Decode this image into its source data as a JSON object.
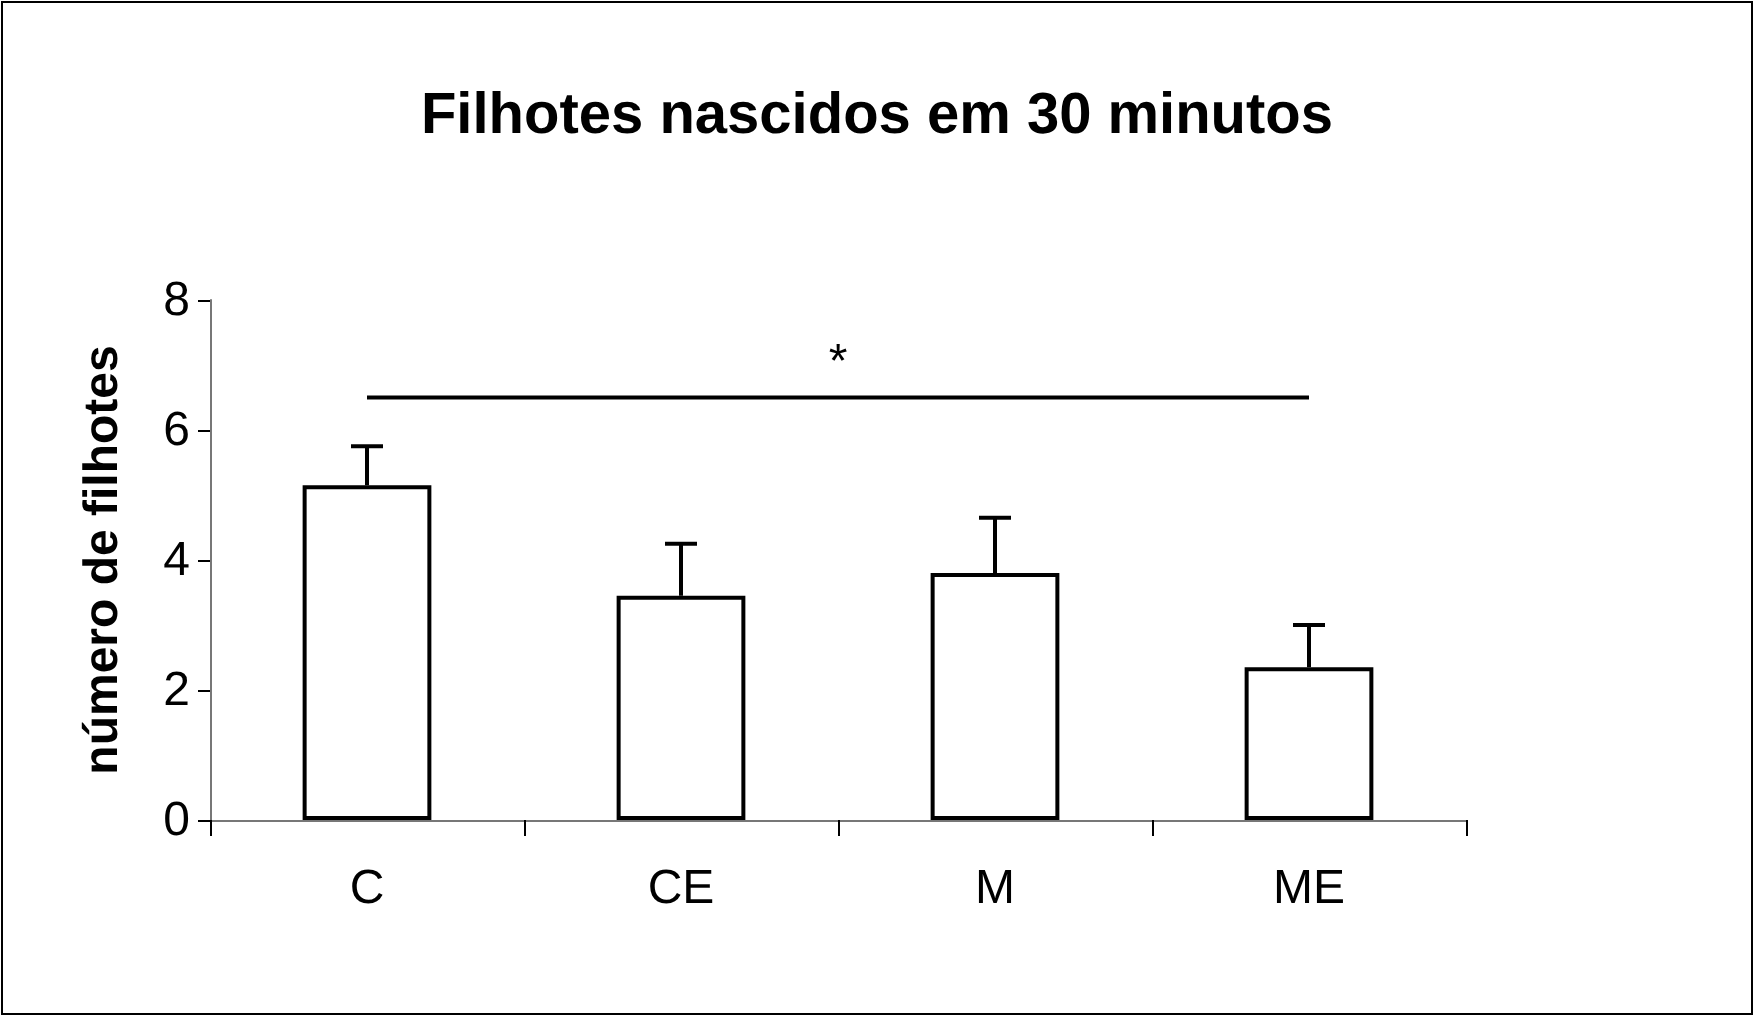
{
  "chart_data": {
    "type": "bar",
    "title": "Filhotes nascidos em 30 minutos",
    "ylabel": "número de filhotes",
    "categories": [
      "C",
      "CE",
      "M",
      "ME"
    ],
    "series": [
      {
        "color": "#ffffff",
        "values": [
          5.15,
          3.45,
          3.8,
          2.35
        ],
        "errors": [
          0.6,
          0.8,
          0.85,
          0.65
        ]
      },
      {
        "type": "line",
        "x": [
          "C",
          "ME"
        ],
        "values": [
          6.5,
          6.5
        ],
        "color": "#000000",
        "marker": "none"
      }
    ],
    "ylim": [
      0,
      8
    ],
    "yticks": [
      0,
      2,
      4,
      6,
      8
    ],
    "grid": false,
    "annotations": [
      "*"
    ]
  }
}
